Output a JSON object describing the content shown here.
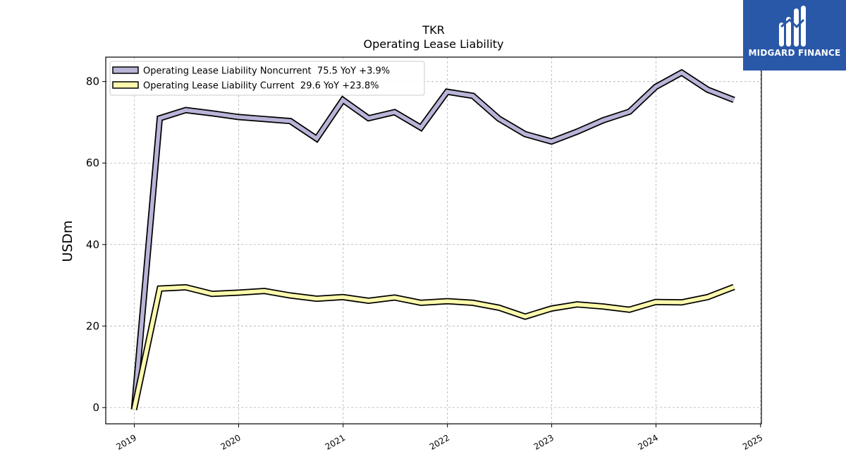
{
  "logo": {
    "name": "MIDGARD FINANCE",
    "background": "#2a58a8",
    "icon": "midgard-logo-icon"
  },
  "chart_data": {
    "type": "line",
    "title": "TKR",
    "subtitle": "Operating Lease Liability",
    "xlabel": "",
    "ylabel": "USDm",
    "ylim": [
      -4,
      86
    ],
    "yticks": [
      0,
      20,
      40,
      60,
      80
    ],
    "xlim": [
      "2018-09-23",
      "2025-01-04"
    ],
    "xticks": [
      "2019",
      "2020",
      "2021",
      "2022",
      "2023",
      "2024",
      "2025"
    ],
    "grid": true,
    "legend_position": "top-left",
    "x": [
      "2018-12-31",
      "2019-03-31",
      "2019-06-30",
      "2019-09-30",
      "2019-12-31",
      "2020-03-31",
      "2020-06-30",
      "2020-09-30",
      "2020-12-31",
      "2021-03-31",
      "2021-06-30",
      "2021-09-30",
      "2021-12-31",
      "2022-03-31",
      "2022-06-30",
      "2022-09-30",
      "2022-12-31",
      "2023-03-31",
      "2023-06-30",
      "2023-09-30",
      "2023-12-31",
      "2024-03-31",
      "2024-06-30",
      "2024-09-30"
    ],
    "series": [
      {
        "name": "Operating Lease Liability Noncurrent  75.5 YoY +3.9%",
        "color": "#b8b5d8",
        "values": [
          -0.5,
          71.0,
          73.0,
          72.2,
          71.3,
          70.8,
          70.3,
          66.0,
          75.5,
          71.0,
          72.5,
          68.7,
          77.5,
          76.5,
          70.9,
          67.1,
          65.3,
          67.7,
          70.5,
          72.6,
          78.7,
          82.2,
          78.0,
          75.5
        ]
      },
      {
        "name": "Operating Lease Liability Current  29.6 YoY +23.8%",
        "color": "#fdfaad",
        "values": [
          -0.5,
          29.2,
          29.5,
          27.9,
          28.2,
          28.6,
          27.5,
          26.7,
          27.1,
          26.2,
          27.0,
          25.7,
          26.1,
          25.7,
          24.5,
          22.3,
          24.3,
          25.3,
          24.8,
          24.0,
          25.9,
          25.8,
          27.1,
          29.6
        ]
      }
    ]
  }
}
